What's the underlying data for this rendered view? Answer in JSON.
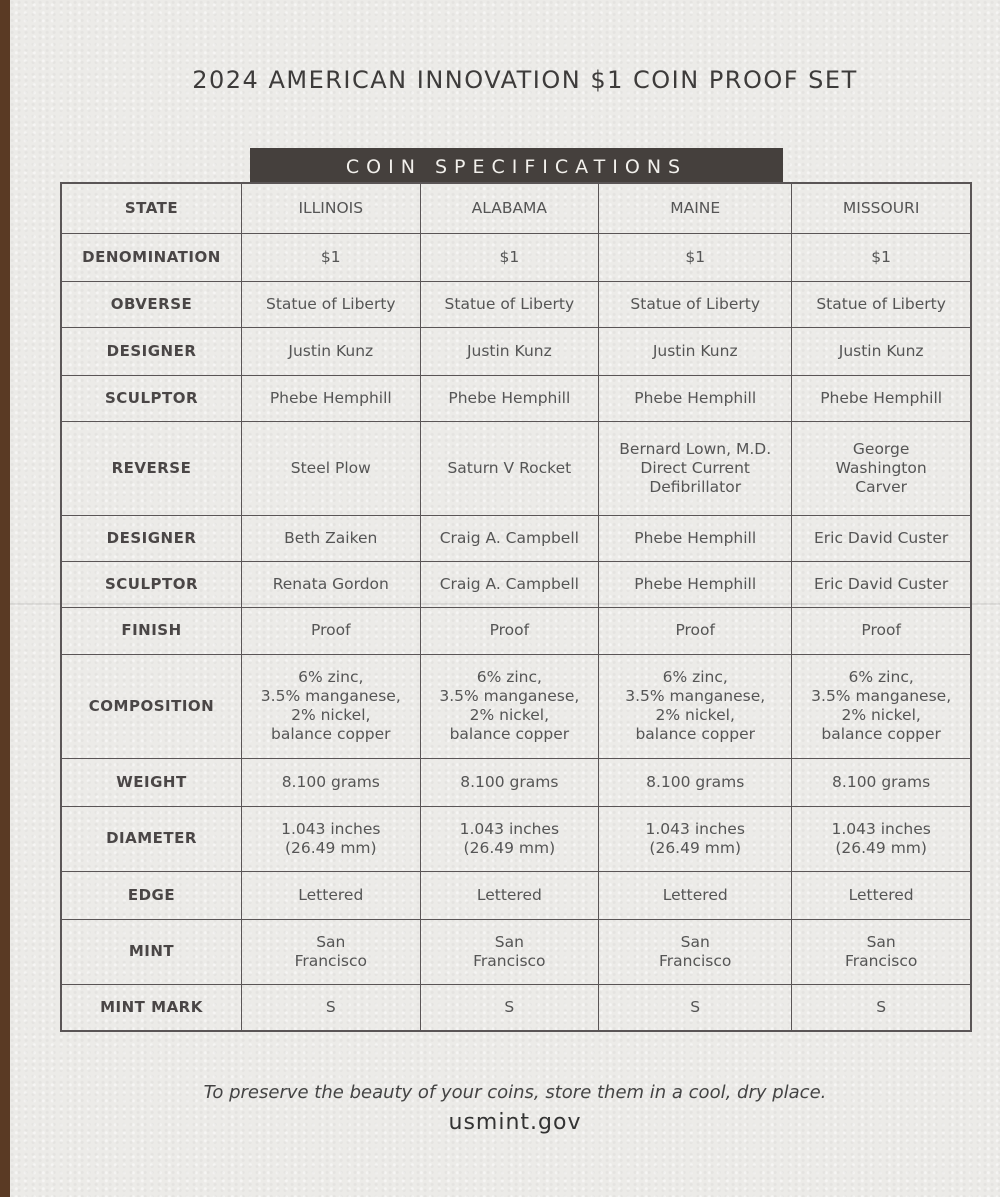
{
  "title": "2024 AMERICAN INNOVATION $1 COIN PROOF SET",
  "banner": "COIN SPECIFICATIONS",
  "rows": [
    {
      "label": "STATE",
      "cells": [
        "ILLINOIS",
        "ALABAMA",
        "MAINE",
        "MISSOURI"
      ]
    },
    {
      "label": "DENOMINATION",
      "cells": [
        "$1",
        "$1",
        "$1",
        "$1"
      ]
    },
    {
      "label": "OBVERSE",
      "cells": [
        "Statue of Liberty",
        "Statue of Liberty",
        "Statue of Liberty",
        "Statue of Liberty"
      ]
    },
    {
      "label": "DESIGNER",
      "cells": [
        "Justin Kunz",
        "Justin Kunz",
        "Justin Kunz",
        "Justin Kunz"
      ]
    },
    {
      "label": "SCULPTOR",
      "cells": [
        "Phebe Hemphill",
        "Phebe Hemphill",
        "Phebe Hemphill",
        "Phebe Hemphill"
      ]
    },
    {
      "label": "REVERSE",
      "cells": [
        "Steel Plow",
        "Saturn V Rocket",
        "Bernard Lown, M.D.\nDirect Current\nDefibrillator",
        "George\nWashington\nCarver"
      ]
    },
    {
      "label": "DESIGNER",
      "cells": [
        "Beth Zaiken",
        "Craig A. Campbell",
        "Phebe Hemphill",
        "Eric David Custer"
      ]
    },
    {
      "label": "SCULPTOR",
      "cells": [
        "Renata Gordon",
        "Craig A. Campbell",
        "Phebe Hemphill",
        "Eric David Custer"
      ]
    },
    {
      "label": "FINISH",
      "cells": [
        "Proof",
        "Proof",
        "Proof",
        "Proof"
      ]
    },
    {
      "label": "COMPOSITION",
      "cells": [
        "6% zinc,\n3.5% manganese,\n2% nickel,\nbalance copper",
        "6% zinc,\n3.5% manganese,\n2% nickel,\nbalance copper",
        "6% zinc,\n3.5% manganese,\n2% nickel,\nbalance copper",
        "6% zinc,\n3.5% manganese,\n2% nickel,\nbalance copper"
      ]
    },
    {
      "label": "WEIGHT",
      "cells": [
        "8.100 grams",
        "8.100 grams",
        "8.100 grams",
        "8.100 grams"
      ]
    },
    {
      "label": "DIAMETER",
      "cells": [
        "1.043 inches\n(26.49 mm)",
        "1.043 inches\n(26.49 mm)",
        "1.043 inches\n(26.49 mm)",
        "1.043 inches\n(26.49 mm)"
      ]
    },
    {
      "label": "EDGE",
      "cells": [
        "Lettered",
        "Lettered",
        "Lettered",
        "Lettered"
      ]
    },
    {
      "label": "MINT",
      "cells": [
        "San\nFrancisco",
        "San\nFrancisco",
        "San\nFrancisco",
        "San\nFrancisco"
      ]
    },
    {
      "label": "MINT MARK",
      "cells": [
        "S",
        "S",
        "S",
        "S"
      ]
    }
  ],
  "note": "To preserve the beauty of your coins, store them in a cool, dry place.",
  "url": "usmint.gov"
}
